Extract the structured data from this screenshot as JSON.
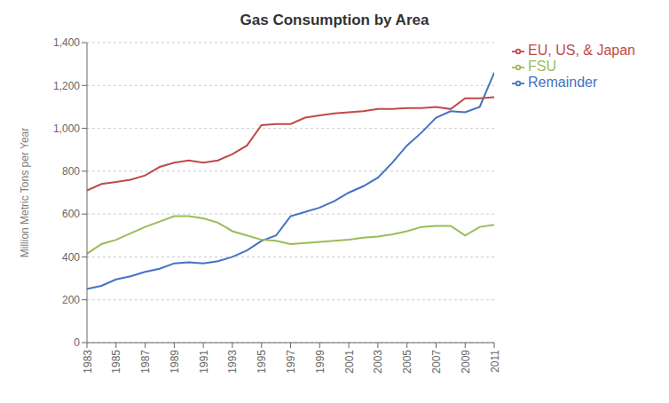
{
  "chart_data": {
    "type": "line",
    "title": "Gas Consumption by Area",
    "ylabel": "Million Metric Tons per Year",
    "x": [
      1983,
      1984,
      1985,
      1986,
      1987,
      1988,
      1989,
      1990,
      1991,
      1992,
      1993,
      1994,
      1995,
      1996,
      1997,
      1998,
      1999,
      2000,
      2001,
      2002,
      2003,
      2004,
      2005,
      2006,
      2007,
      2008,
      2009,
      2010,
      2011
    ],
    "series": [
      {
        "name": "Remainder",
        "color": "#4472C4",
        "values": [
          250,
          265,
          295,
          310,
          330,
          345,
          370,
          375,
          370,
          380,
          400,
          430,
          475,
          500,
          590,
          610,
          630,
          660,
          700,
          730,
          770,
          840,
          920,
          980,
          1050,
          1080,
          1075,
          1100,
          1260
        ]
      },
      {
        "name": "EU, US, & Japan",
        "color": "#BE4B48",
        "values": [
          710,
          740,
          750,
          760,
          780,
          820,
          840,
          850,
          840,
          850,
          880,
          920,
          1015,
          1020,
          1020,
          1050,
          1060,
          1070,
          1075,
          1080,
          1090,
          1090,
          1095,
          1095,
          1100,
          1090,
          1140,
          1140,
          1145
        ]
      },
      {
        "name": "FSU",
        "color": "#9BBB59",
        "values": [
          415,
          460,
          480,
          510,
          540,
          565,
          590,
          590,
          580,
          560,
          520,
          500,
          480,
          475,
          460,
          465,
          470,
          475,
          480,
          490,
          495,
          505,
          520,
          540,
          545,
          545,
          500,
          540,
          550
        ]
      }
    ],
    "xlim": [
      1983,
      2011
    ],
    "xticks": [
      1983,
      1985,
      1987,
      1989,
      1991,
      1993,
      1995,
      1997,
      1999,
      2001,
      2003,
      2005,
      2007,
      2009,
      2011
    ],
    "ylim": [
      0,
      1400
    ],
    "yticks": [
      0,
      200,
      400,
      600,
      800,
      {
        "value": 1000,
        "label": "1,000"
      },
      {
        "value": 1200,
        "label": "1,200"
      },
      {
        "value": 1400,
        "label": "1,400"
      }
    ],
    "grid": true,
    "legend": "right"
  }
}
